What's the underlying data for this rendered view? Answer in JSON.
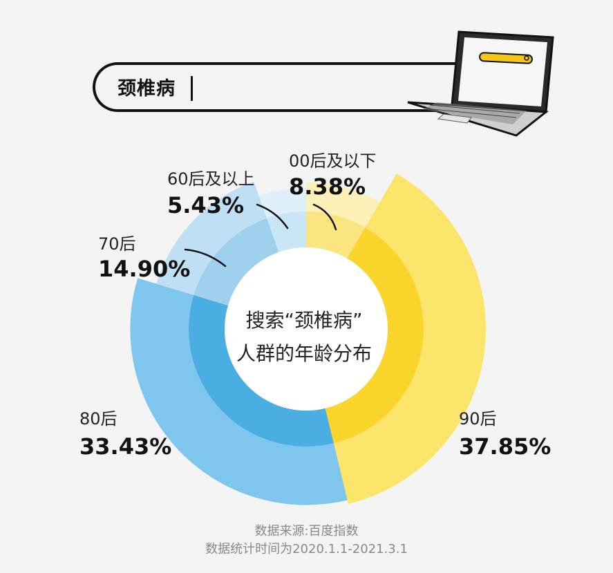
{
  "header": {
    "search_term": "颈椎病"
  },
  "chart_data": {
    "type": "pie",
    "title": "搜索“颈椎病”人群的年龄分布",
    "center_label_lines": [
      "搜索“颈椎病”",
      "人群的年龄分布"
    ],
    "categories": [
      "00后及以下",
      "90后",
      "80后",
      "70后",
      "60后及以上"
    ],
    "values": [
      8.38,
      37.85,
      33.43,
      14.9,
      5.43
    ],
    "value_labels": [
      "8.38%",
      "37.85%",
      "33.43%",
      "14.90%",
      "5.43%"
    ],
    "colors": {
      "00后及以下": {
        "outer": "#fdf1b8",
        "inner": "#fbe580"
      },
      "90后": {
        "outer": "#fbe46a",
        "inner": "#fad52c"
      },
      "80后": {
        "outer": "#7ec6ee",
        "inner": "#4aaee3"
      },
      "70后": {
        "outer": "#bfe0f4",
        "inner": "#9fd0ee"
      },
      "60后及以上": {
        "outer": "#e0f0fa",
        "inner": "#c9e6f6"
      }
    }
  },
  "footer": {
    "source": "数据来源:百度指数",
    "period": "数据统计时间为2020.1.1-2021.3.1"
  }
}
